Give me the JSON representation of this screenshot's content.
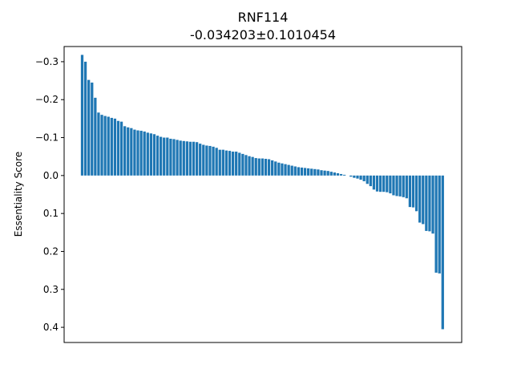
{
  "chart_data": {
    "type": "bar",
    "title": "RNF114",
    "subtitle": "-0.034203±0.1010454",
    "xlabel": "",
    "ylabel": "Essentiality Score",
    "y_inverted": true,
    "ylim": [
      -0.34,
      0.44
    ],
    "yticks": [
      -0.3,
      -0.2,
      -0.1,
      0.0,
      0.1,
      0.2,
      0.3,
      0.4
    ],
    "ytick_labels": [
      "−0.3",
      "−0.2",
      "−0.1",
      "0.0",
      "0.1",
      "0.2",
      "0.3",
      "0.4"
    ],
    "bar_color": "#1f77b4",
    "values": [
      -0.318,
      -0.3,
      -0.252,
      -0.245,
      -0.205,
      -0.166,
      -0.16,
      -0.157,
      -0.155,
      -0.152,
      -0.15,
      -0.144,
      -0.142,
      -0.13,
      -0.127,
      -0.125,
      -0.121,
      -0.119,
      -0.118,
      -0.116,
      -0.113,
      -0.111,
      -0.109,
      -0.105,
      -0.102,
      -0.1,
      -0.1,
      -0.097,
      -0.096,
      -0.094,
      -0.092,
      -0.091,
      -0.09,
      -0.089,
      -0.089,
      -0.088,
      -0.084,
      -0.081,
      -0.079,
      -0.078,
      -0.076,
      -0.073,
      -0.068,
      -0.068,
      -0.066,
      -0.065,
      -0.063,
      -0.063,
      -0.06,
      -0.057,
      -0.054,
      -0.051,
      -0.049,
      -0.046,
      -0.045,
      -0.045,
      -0.044,
      -0.043,
      -0.04,
      -0.037,
      -0.034,
      -0.032,
      -0.03,
      -0.028,
      -0.026,
      -0.024,
      -0.022,
      -0.021,
      -0.02,
      -0.019,
      -0.018,
      -0.017,
      -0.016,
      -0.014,
      -0.013,
      -0.012,
      -0.01,
      -0.008,
      -0.006,
      -0.004,
      -0.002,
      0.0,
      0.003,
      0.006,
      0.008,
      0.011,
      0.015,
      0.022,
      0.028,
      0.037,
      0.042,
      0.043,
      0.043,
      0.044,
      0.047,
      0.052,
      0.054,
      0.055,
      0.057,
      0.06,
      0.083,
      0.084,
      0.094,
      0.124,
      0.128,
      0.146,
      0.147,
      0.153,
      0.256,
      0.258,
      0.405
    ]
  }
}
